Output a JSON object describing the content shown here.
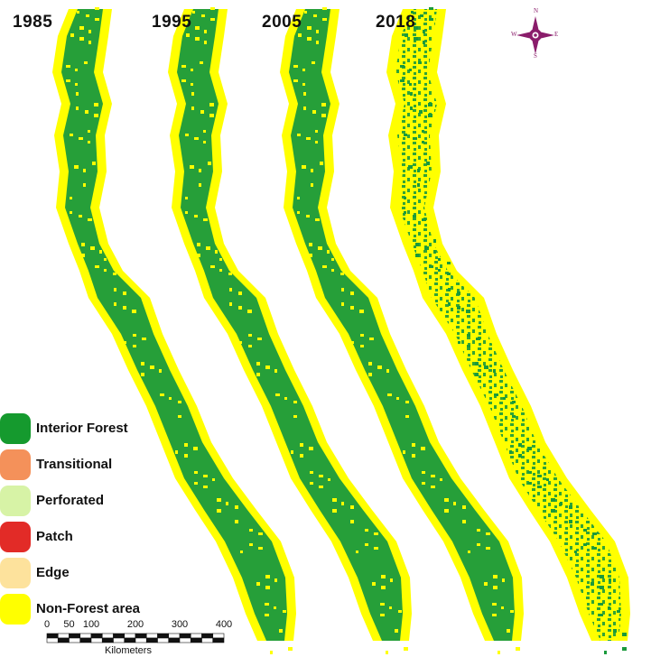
{
  "map": {
    "years": [
      "1985",
      "1995",
      "2005",
      "2018"
    ],
    "colors": {
      "interior_forest": "#1a9a3c",
      "non_forest": "#ffff00",
      "perforated": "#b6d957",
      "background": "#ffffff"
    }
  },
  "compass": {
    "north": "N",
    "south": "S",
    "east": "E",
    "west": "W",
    "color": "#8a1d6b"
  },
  "legend": {
    "items": [
      {
        "label": "Interior Forest",
        "color": "#159a2e",
        "icon": "swatch"
      },
      {
        "label": "Transitional",
        "color": "#f4915a",
        "icon": "swatch"
      },
      {
        "label": "Perforated",
        "color": "#d7f3a6",
        "icon": "swatch"
      },
      {
        "label": "Patch",
        "color": "#e22b27",
        "icon": "swatch"
      },
      {
        "label": "Edge",
        "color": "#fde29c",
        "icon": "swatch"
      },
      {
        "label": "Non-Forest area",
        "color": "#ffff00",
        "icon": "swatch"
      }
    ]
  },
  "scalebar": {
    "ticks": [
      "0",
      "50",
      "100",
      "200",
      "300",
      "400"
    ],
    "tick_values": [
      0,
      50,
      100,
      200,
      300,
      400
    ],
    "unit": "Kilometers"
  }
}
